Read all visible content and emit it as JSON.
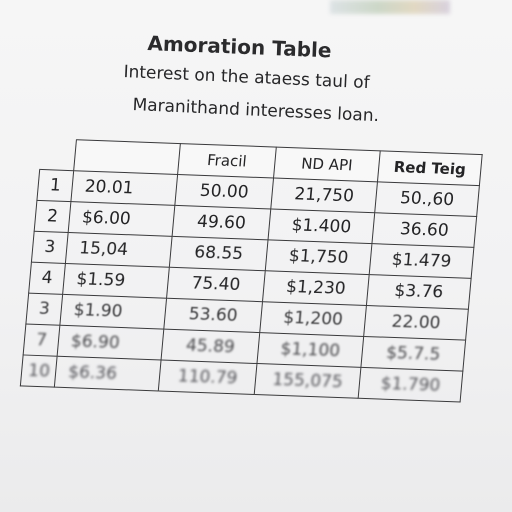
{
  "document": {
    "title": "Amoration Table",
    "subtitle": "Interest on the ataess taul of",
    "description": "Maranithand interesses loan."
  },
  "table": {
    "headers": [
      "",
      "",
      "Fracil",
      "ND API",
      "Red Teig"
    ],
    "rows": [
      {
        "num": "1",
        "c1": "20.01",
        "c2": "50.00",
        "c3": "21,750",
        "c4": "50.,60"
      },
      {
        "num": "2",
        "c1": "$6.00",
        "c2": "49.60",
        "c3": "$1.400",
        "c4": "36.60"
      },
      {
        "num": "3",
        "c1": "15,04",
        "c2": "68.55",
        "c3": "$1,750",
        "c4": "$1.479"
      },
      {
        "num": "4",
        "c1": "$1.59",
        "c2": "75.40",
        "c3": "$1,230",
        "c4": "$3.76"
      },
      {
        "num": "3",
        "c1": "$1.90",
        "c2": "53.60",
        "c3": "$1,200",
        "c4": "22.00"
      },
      {
        "num": "7",
        "c1": "$6.90",
        "c2": "45.89",
        "c3": "$1,100",
        "c4": "$5.7.5"
      },
      {
        "num": "10",
        "c1": "$6.36",
        "c2": "110.79",
        "c3": "155,075",
        "c4": "$1.790"
      }
    ]
  }
}
